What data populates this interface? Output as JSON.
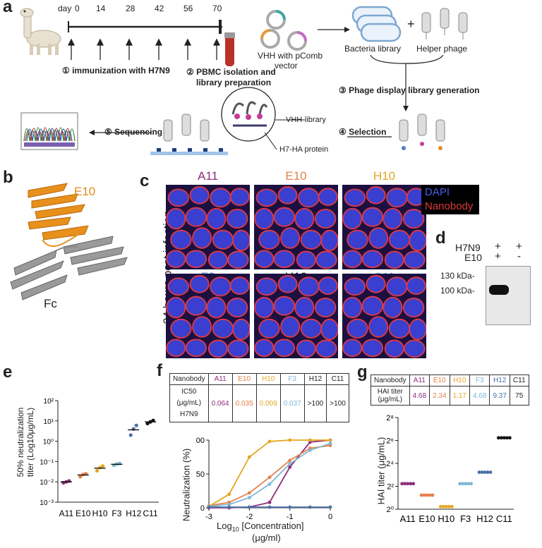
{
  "panel_a": {
    "label": "a",
    "day_label": "day",
    "days": [
      "0",
      "14",
      "28",
      "42",
      "56",
      "70"
    ],
    "step1": "① immunization with H7N9",
    "step2_line1": "② PBMC isolation and",
    "step2_line2": "library preparation",
    "vhh_line1": "VHH with pComb",
    "vhh_line2": "vector",
    "bacteria": "Bacteria library",
    "plus": "+",
    "helper": "Helper phage",
    "step3": "③ Phage display library generation",
    "step4": "④ Selection",
    "step5": "⑤ Sequencing",
    "vhh_library": "VHH-library",
    "h7_protein": "H7-HA protein"
  },
  "panel_b": {
    "label": "b",
    "e10": "E10",
    "fc": "Fc"
  },
  "panel_c": {
    "label": "c",
    "side": "24 hours post infection",
    "top_labels": [
      "A11",
      "E10",
      "H10"
    ],
    "bottom_labels": [
      "F3",
      "H12",
      "C11"
    ],
    "top_colors": [
      "#8e2c7a",
      "#e5814a",
      "#e6a623"
    ],
    "bottom_colors": [
      "#5b8dc9",
      "#222222",
      "#7fb6d6"
    ],
    "dapi": "DAPI",
    "nanobody": "Nanobody"
  },
  "panel_d": {
    "label": "d",
    "row1": "H7N9",
    "row2": "E10",
    "r1": [
      "+",
      "+"
    ],
    "r2": [
      "+",
      "-"
    ],
    "kda130": "130 kDa-",
    "kda100": "100 kDa-"
  },
  "panel_e": {
    "label": "e",
    "ylabel_line1": "50% neutralization",
    "ylabel_line2": "titer (Log10μg/mL)",
    "yticks": [
      "10²",
      "10¹",
      "10⁰",
      "10⁻¹",
      "10⁻²",
      "10⁻³"
    ],
    "categories": [
      "A11",
      "E10",
      "H10",
      "F3",
      "H12",
      "C11"
    ]
  },
  "panel_f": {
    "label": "f",
    "table": {
      "header": [
        "Nanobody",
        "A11",
        "E10",
        "H10",
        "F3",
        "H12",
        "C11"
      ],
      "row_label_1": "IC50",
      "row_label_2": "(μg/mL)",
      "row_label_3": "H7N9",
      "values": [
        "0.064",
        "0.035",
        "0.009",
        "0.037",
        ">100",
        ">100"
      ]
    },
    "ylabel": "Neutralization (%)",
    "xlabel_line1": "Log10 [Concentration]",
    "xlabel_line2": "(μg/ml)",
    "xticks": [
      "-3",
      "-2",
      "-1",
      "0"
    ],
    "yticks": [
      "100",
      "50",
      "0"
    ]
  },
  "panel_g": {
    "label": "g",
    "table": {
      "header": [
        "Nanobody",
        "A11",
        "E10",
        "H10",
        "F3",
        "H12",
        "C11"
      ],
      "row_label_1": "HAI titer",
      "row_label_2": "(μg/mL)",
      "values": [
        "4.68",
        "2.34",
        "1.17",
        "4.68",
        "9.37",
        "75"
      ]
    },
    "ylabel": "HAI titer (μg/mL)",
    "yticks": [
      "2⁸",
      "2⁶",
      "2⁴",
      "2²",
      "2⁰"
    ],
    "categories": [
      "A11",
      "E10",
      "H10",
      "F3",
      "H12",
      "C11"
    ]
  },
  "colors": {
    "A11": "#8e2c7a",
    "E10": "#e5814a",
    "H10": "#e6a623",
    "F3": "#7fb6d6",
    "H12": "#4a6fa5",
    "C11": "#111111"
  },
  "chart_data": [
    {
      "type": "scatter",
      "panel": "e",
      "ylabel": "50% neutralization titer (Log10μg/mL)",
      "yscale": "log",
      "ylim": [
        0.001,
        100
      ],
      "categories": [
        "A11",
        "E10",
        "H10",
        "F3",
        "H12",
        "C11"
      ],
      "series": [
        {
          "name": "A11",
          "values": [
            0.009,
            0.01,
            0.011
          ]
        },
        {
          "name": "E10",
          "values": [
            0.018,
            0.023,
            0.025
          ]
        },
        {
          "name": "H10",
          "values": [
            0.035,
            0.05,
            0.06
          ]
        },
        {
          "name": "F3",
          "values": [
            0.065,
            0.075,
            0.08
          ]
        },
        {
          "name": "H12",
          "values": [
            2.0,
            4.0,
            6.0
          ]
        },
        {
          "name": "C11",
          "values": [
            7.5,
            9.0,
            10.5
          ]
        }
      ]
    },
    {
      "type": "line",
      "panel": "f",
      "ylabel": "Neutralization (%)",
      "xlabel": "Log10 [Concentration] (μg/ml)",
      "xlim": [
        -3,
        0
      ],
      "ylim": [
        0,
        100
      ],
      "x": [
        -3,
        -2.5,
        -2,
        -1.5,
        -1,
        -0.5,
        0
      ],
      "series": [
        {
          "name": "A11",
          "values": [
            0,
            0,
            1,
            8,
            60,
            97,
            100
          ]
        },
        {
          "name": "E10",
          "values": [
            3,
            8,
            22,
            45,
            70,
            88,
            92
          ]
        },
        {
          "name": "H10",
          "values": [
            2,
            20,
            75,
            98,
            100,
            100,
            100
          ]
        },
        {
          "name": "F3",
          "values": [
            2,
            5,
            15,
            35,
            65,
            85,
            95
          ]
        },
        {
          "name": "H12",
          "values": [
            1,
            1,
            1,
            1,
            1,
            1,
            1
          ]
        }
      ]
    },
    {
      "type": "scatter",
      "panel": "g",
      "ylabel": "HAI titer (μg/mL)",
      "yscale": "log2",
      "categories": [
        "A11",
        "E10",
        "H10",
        "F3",
        "H12",
        "C11"
      ],
      "values": [
        4.68,
        2.34,
        1.17,
        4.68,
        9.37,
        75
      ]
    }
  ]
}
